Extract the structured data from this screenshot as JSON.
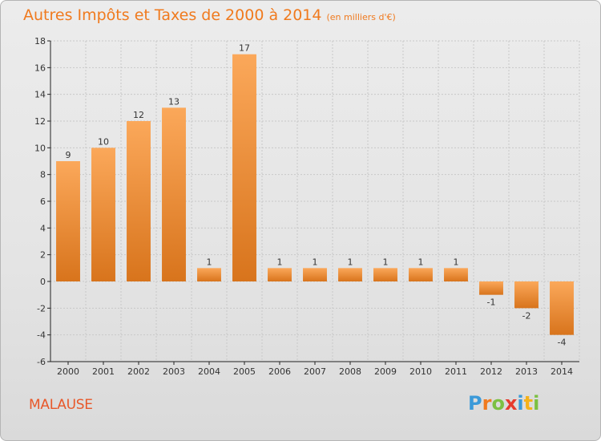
{
  "header": {
    "title": "Autres Impôts et Taxes de 2000 à 2014",
    "subtitle": "(en milliers d'€)"
  },
  "footer": {
    "location": "MALAUSE",
    "logo": {
      "letters": [
        "P",
        "r",
        "o",
        "x",
        "i",
        "t",
        "i"
      ],
      "colors": [
        "#3b9ad9",
        "#f07a1e",
        "#7cc043",
        "#e63b2e",
        "#3b9ad9",
        "#f5b21a",
        "#7cc043"
      ]
    }
  },
  "colors": {
    "bar_light": "#fba85a",
    "bar_dark": "#d8741c",
    "grid": "#c8c8c8",
    "axis": "#222222"
  },
  "chart_data": {
    "type": "bar",
    "title": "Autres Impôts et Taxes de 2000 à 2014",
    "subtitle": "(en milliers d'€)",
    "categories": [
      "2000",
      "2001",
      "2002",
      "2003",
      "2004",
      "2005",
      "2006",
      "2007",
      "2008",
      "2009",
      "2010",
      "2011",
      "2012",
      "2013",
      "2014"
    ],
    "values": [
      9,
      10,
      12,
      13,
      1,
      17,
      1,
      1,
      1,
      1,
      1,
      1,
      -1,
      -2,
      -4
    ],
    "value_labels": [
      "9",
      "10",
      "12",
      "13",
      "1",
      "17",
      "1",
      "1",
      "1",
      "1",
      "1",
      "1",
      "-1",
      "-2",
      "-4"
    ],
    "y_ticks": [
      18,
      16,
      14,
      12,
      10,
      8,
      6,
      4,
      2,
      0,
      -2,
      -4,
      -6
    ],
    "ylim": [
      -6,
      18
    ],
    "grid": true,
    "legend": "none"
  }
}
